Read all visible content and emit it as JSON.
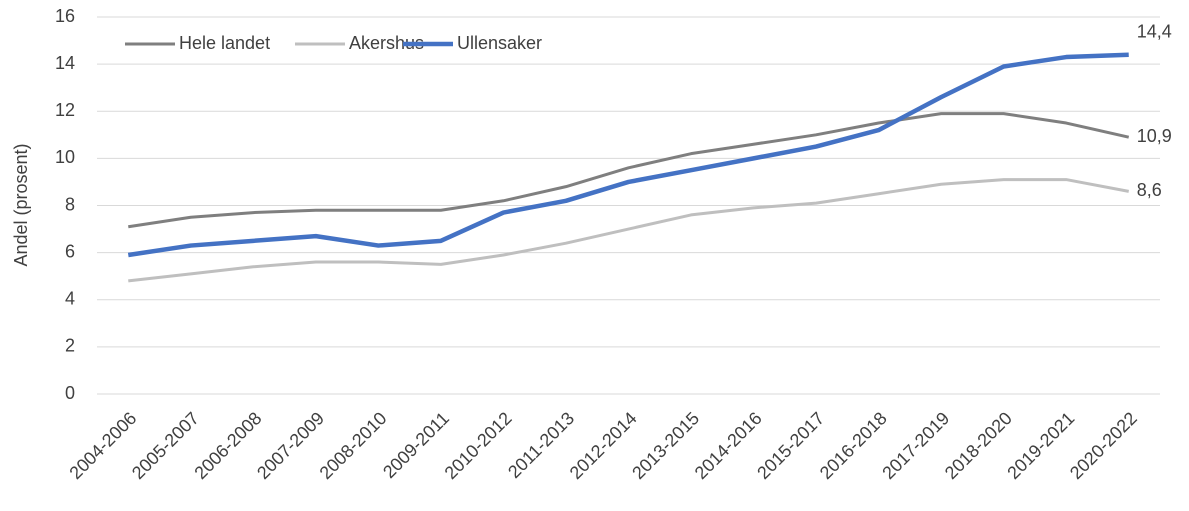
{
  "chart_data": {
    "type": "line",
    "y_label": "Andel (prosent)",
    "categories": [
      "2004-2006",
      "2005-2007",
      "2006-2008",
      "2007-2009",
      "2008-2010",
      "2009-2011",
      "2010-2012",
      "2011-2013",
      "2012-2014",
      "2013-2015",
      "2014-2016",
      "2015-2017",
      "2016-2018",
      "2017-2019",
      "2018-2020",
      "2019-2021",
      "2020-2022"
    ],
    "series": [
      {
        "name": "Hele landet",
        "color": "#7f7f7f",
        "values": [
          7.1,
          7.5,
          7.7,
          7.8,
          7.8,
          7.8,
          8.2,
          8.8,
          9.6,
          10.2,
          10.6,
          11.0,
          11.5,
          11.9,
          11.9,
          11.5,
          10.9
        ],
        "value_labels": [
          null,
          null,
          null,
          null,
          null,
          null,
          null,
          null,
          null,
          null,
          null,
          null,
          null,
          null,
          null,
          null,
          "10,9"
        ]
      },
      {
        "name": "Akershus",
        "color": "#bfbfbf",
        "values": [
          4.8,
          5.1,
          5.4,
          5.6,
          5.6,
          5.5,
          5.9,
          6.4,
          7.0,
          7.6,
          7.9,
          8.1,
          8.5,
          8.9,
          9.1,
          9.1,
          8.6
        ],
        "value_labels": [
          null,
          null,
          null,
          null,
          null,
          null,
          null,
          null,
          null,
          null,
          null,
          null,
          null,
          null,
          null,
          null,
          "8,6"
        ]
      },
      {
        "name": "Ullensaker",
        "color": "#4472c4",
        "values": [
          5.9,
          6.3,
          6.5,
          6.7,
          6.3,
          6.5,
          7.7,
          8.2,
          9.0,
          9.5,
          10.0,
          10.5,
          11.2,
          12.6,
          13.9,
          14.3,
          14.4
        ],
        "value_labels": [
          null,
          null,
          null,
          null,
          null,
          null,
          null,
          null,
          null,
          null,
          null,
          null,
          null,
          null,
          null,
          null,
          "14,4"
        ]
      }
    ],
    "ylim": [
      0,
      16
    ],
    "yticks": [
      0,
      2,
      4,
      6,
      8,
      10,
      12,
      14,
      16
    ],
    "grid": true,
    "legend": "top-left"
  }
}
